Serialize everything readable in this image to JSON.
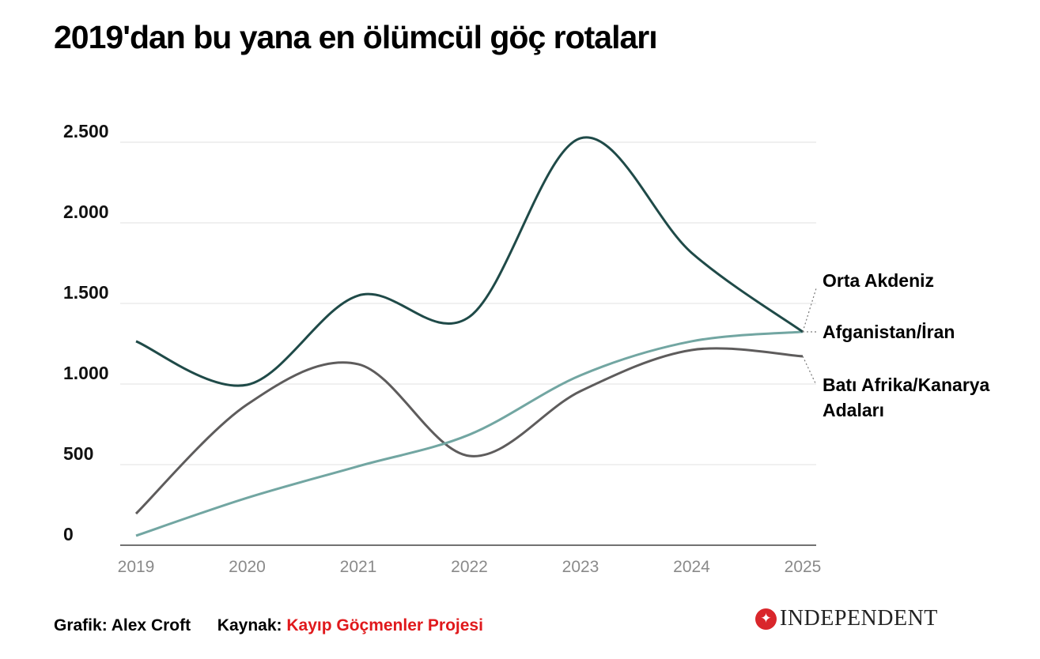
{
  "title": "2019'dan bu yana en ölümcül göç rotaları",
  "chart_data": {
    "type": "line",
    "title": "2019'dan bu yana en ölümcül göç rotaları",
    "xlabel": "",
    "ylabel": "",
    "x": [
      "2019",
      "2020",
      "2021",
      "2022",
      "2023",
      "2024",
      "2025"
    ],
    "ylim": [
      0,
      2500
    ],
    "yticks": [
      0,
      500,
      1000,
      1500,
      2000,
      2500
    ],
    "ytick_labels": [
      "0",
      "500",
      "1.000",
      "1.500",
      "2.000",
      "2.500"
    ],
    "grid": true,
    "legend": "right (direct labels)",
    "series": [
      {
        "name": "Orta Akdeniz",
        "color": "#1f4a48",
        "values": [
          1265,
          995,
          1549,
          1417,
          2525,
          1814,
          1324
        ]
      },
      {
        "name": "Afganistan/İran",
        "color": "#72a6a2",
        "values": [
          59,
          294,
          490,
          686,
          1054,
          1265,
          1324
        ]
      },
      {
        "name": "Batı Afrika/Kanarya Adaları",
        "name_lines": [
          "Batı Afrika/Kanarya",
          "Adaları"
        ],
        "color": "#5e5c5c",
        "values": [
          196,
          873,
          1123,
          554,
          956,
          1211,
          1172
        ]
      }
    ]
  },
  "footer": {
    "credit_label": "Grafik:",
    "credit_name": "Alex Croft",
    "source_label": "Kaynak:",
    "source_name": "Kayıp Göçmenler Projesi"
  },
  "logo": {
    "text": "INDEPENDENT"
  }
}
